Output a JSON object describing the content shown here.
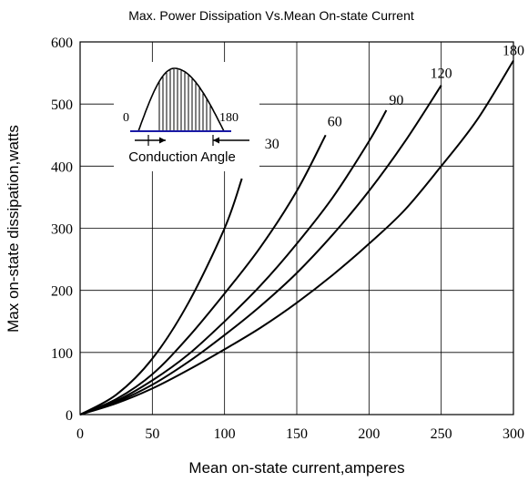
{
  "chart_data": {
    "type": "line",
    "title": "Max. Power Dissipation Vs.Mean On-state Current",
    "xlabel": "Mean on-state current,amperes",
    "ylabel": "Max on-state dissipation,watts",
    "xlim": [
      0,
      300
    ],
    "ylim": [
      0,
      600
    ],
    "xticks": [
      "0",
      "50",
      "100",
      "150",
      "200",
      "250",
      "300"
    ],
    "yticks": [
      "0",
      "100",
      "200",
      "300",
      "400",
      "500",
      "600"
    ],
    "grid": true,
    "series": [
      {
        "name": "30",
        "x": [
          0,
          25,
          50,
          75,
          100,
          112
        ],
        "y": [
          0,
          32,
          90,
          180,
          300,
          380
        ]
      },
      {
        "name": "60",
        "x": [
          0,
          25,
          50,
          75,
          100,
          125,
          150,
          170
        ],
        "y": [
          0,
          25,
          65,
          125,
          195,
          270,
          360,
          450
        ]
      },
      {
        "name": "90",
        "x": [
          0,
          25,
          50,
          75,
          100,
          125,
          150,
          175,
          200,
          212
        ],
        "y": [
          0,
          22,
          55,
          97,
          150,
          208,
          275,
          350,
          440,
          490
        ]
      },
      {
        "name": "120",
        "x": [
          0,
          25,
          50,
          75,
          100,
          125,
          150,
          175,
          200,
          225,
          250
        ],
        "y": [
          0,
          20,
          48,
          85,
          128,
          175,
          228,
          290,
          360,
          440,
          530
        ]
      },
      {
        "name": "180",
        "x": [
          0,
          25,
          50,
          75,
          100,
          125,
          150,
          175,
          200,
          225,
          250,
          275,
          300
        ],
        "y": [
          0,
          18,
          42,
          72,
          105,
          140,
          180,
          225,
          275,
          330,
          400,
          475,
          570
        ]
      }
    ],
    "inset": {
      "start_label": "0",
      "end_label": "180",
      "caption": "Conduction Angle"
    }
  }
}
